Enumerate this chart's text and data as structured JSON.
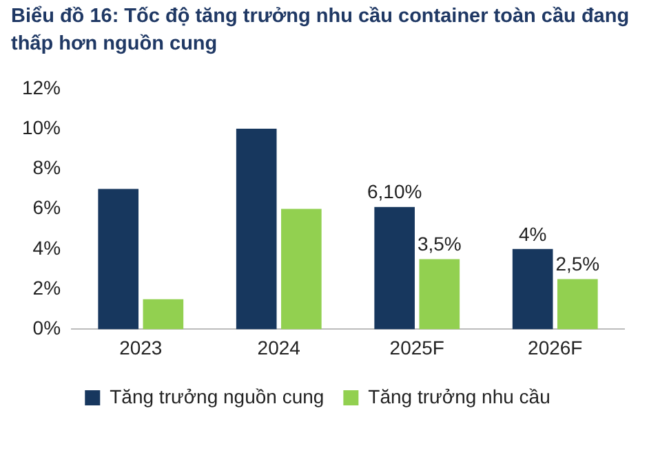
{
  "chart_data": {
    "type": "bar",
    "title": "Biểu đồ 16: Tốc độ tăng trưởng nhu cầu container toàn cầu đang thấp hơn nguồn cung",
    "categories": [
      "2023",
      "2024",
      "2025F",
      "2026F"
    ],
    "series": [
      {
        "name": "Tăng trưởng nguồn cung",
        "color": "#17375e",
        "values": [
          7,
          10,
          6.1,
          4
        ],
        "value_labels": [
          null,
          null,
          "6,10%",
          "4%"
        ]
      },
      {
        "name": "Tăng trưởng nhu cầu",
        "color": "#92d050",
        "values": [
          1.5,
          6,
          3.5,
          2.5
        ],
        "value_labels": [
          null,
          null,
          "3,5%",
          "2,5%"
        ]
      }
    ],
    "ylim": [
      0,
      12
    ],
    "yticks": [
      {
        "value": 0,
        "label": "0%"
      },
      {
        "value": 2,
        "label": "2%"
      },
      {
        "value": 4,
        "label": "4%"
      },
      {
        "value": 6,
        "label": "6%"
      },
      {
        "value": 8,
        "label": "8%"
      },
      {
        "value": 10,
        "label": "10%"
      },
      {
        "value": 12,
        "label": "12%"
      }
    ],
    "grid": false,
    "legend": "bottom"
  }
}
